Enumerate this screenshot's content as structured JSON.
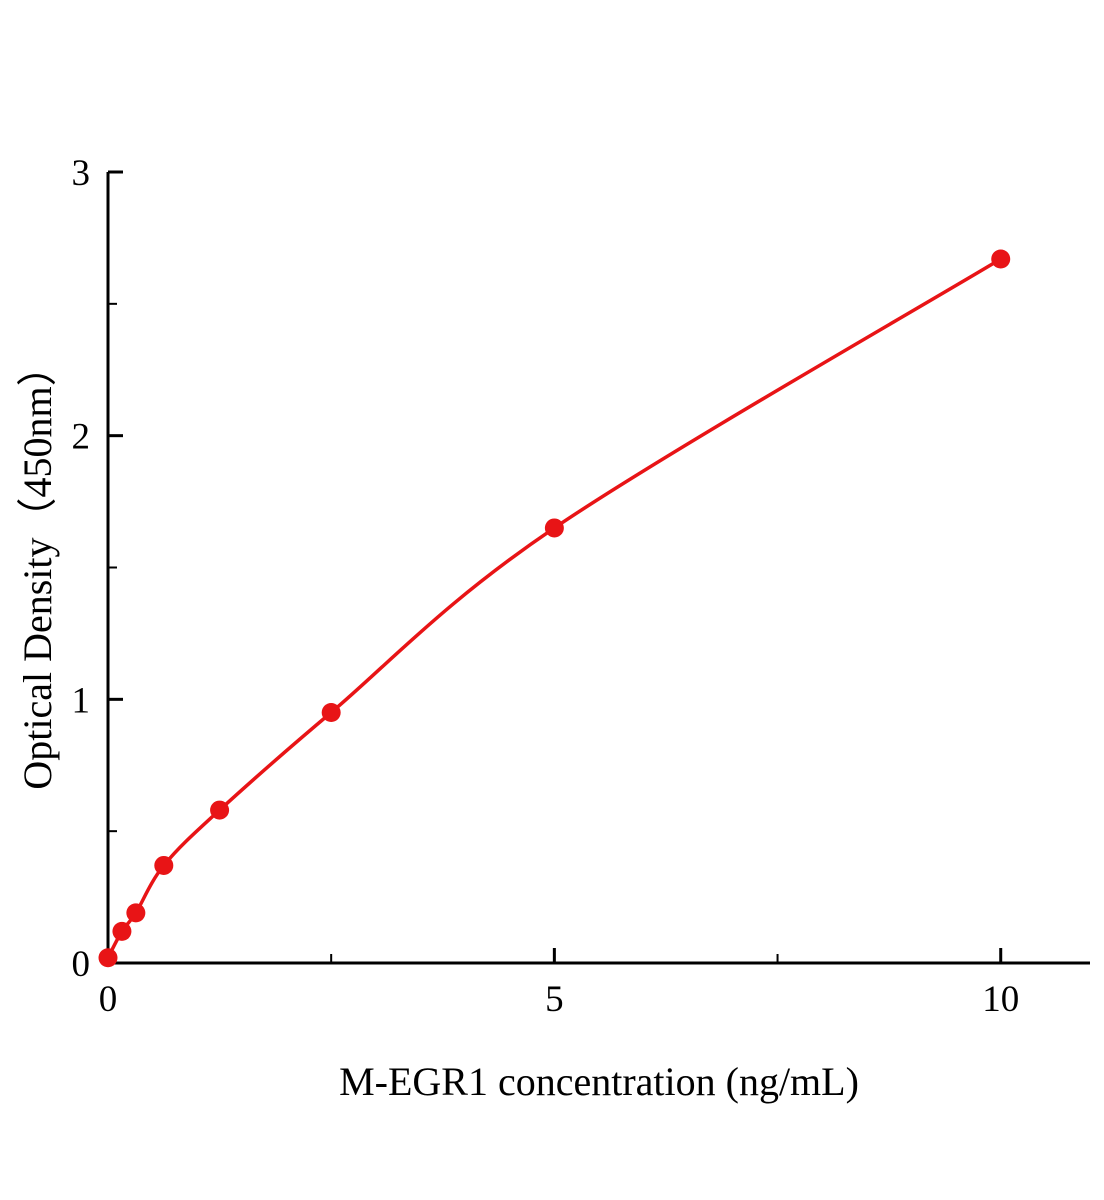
{
  "figure": {
    "background": "#ffffff"
  },
  "chart_data": {
    "type": "line",
    "markers": true,
    "title": "",
    "xlabel": "M-EGR1 concentration (ng/mL)",
    "ylabel": "Optical Density（450nm）",
    "xlim": [
      0,
      11
    ],
    "ylim": [
      0,
      3
    ],
    "xticks": [
      0,
      5,
      10
    ],
    "yticks": [
      0,
      1,
      2,
      3
    ],
    "xminorticks": [
      2.5,
      7.5
    ],
    "yminorticks": [
      0.5,
      1.5,
      2.5
    ],
    "grid": false,
    "legend": "none",
    "series_color": "#e81416",
    "axis_color": "#000000",
    "points": [
      {
        "x": 0,
        "y": 0.02
      },
      {
        "x": 0.156,
        "y": 0.12
      },
      {
        "x": 0.312,
        "y": 0.19
      },
      {
        "x": 0.625,
        "y": 0.37
      },
      {
        "x": 1.25,
        "y": 0.58
      },
      {
        "x": 2.5,
        "y": 0.95
      },
      {
        "x": 5,
        "y": 1.65
      },
      {
        "x": 10,
        "y": 2.67
      }
    ]
  }
}
